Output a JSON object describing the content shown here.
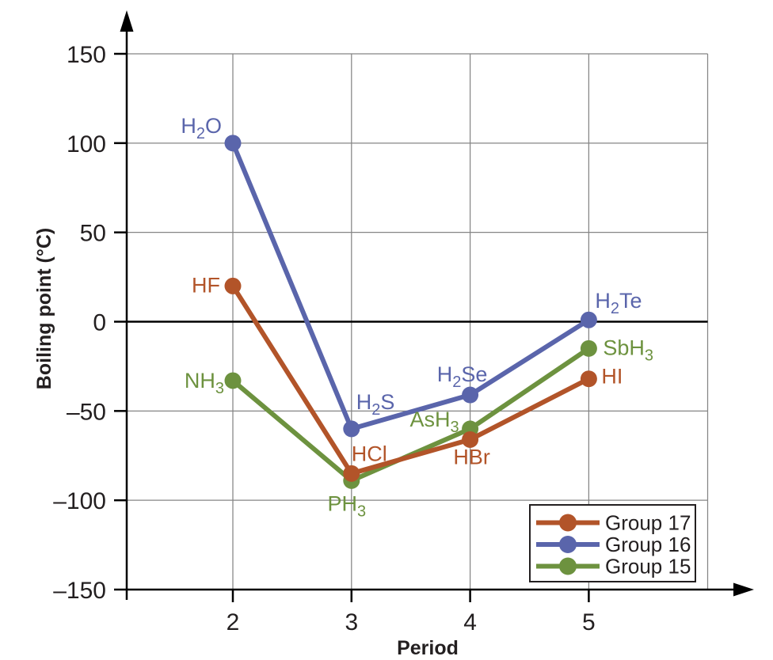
{
  "figure": {
    "background": "#ffffff",
    "text_color": "#231f20",
    "grid_color": "#858585",
    "axis_color": "#000000"
  },
  "chart_data": {
    "type": "line",
    "title": "",
    "xlabel": "Period",
    "ylabel": "Boiling point (°C)",
    "xlim": [
      1.1,
      6.4
    ],
    "ylim": [
      -150,
      150
    ],
    "x_ticks": [
      2,
      3,
      4,
      5
    ],
    "y_ticks": [
      150,
      100,
      50,
      0,
      -50,
      -100,
      -150
    ],
    "grid": true,
    "zero_line": true,
    "legend": {
      "position": "bottom-right"
    },
    "series": [
      {
        "name": "Group 17",
        "color": "#b25429",
        "points": [
          {
            "x": 2,
            "y": 20,
            "label": "HF",
            "label_anchor": "end",
            "label_dx": -16,
            "label_dy": 8
          },
          {
            "x": 3,
            "y": -85,
            "label": "HCl",
            "label_anchor": "start",
            "label_dx": 0,
            "label_dy": -16
          },
          {
            "x": 4,
            "y": -66,
            "label": "HBr",
            "label_anchor": "middle",
            "label_dx": 2,
            "label_dy": 31
          },
          {
            "x": 5,
            "y": -32,
            "label": "HI",
            "label_anchor": "start",
            "label_dx": 16,
            "label_dy": 6
          }
        ]
      },
      {
        "name": "Group 16",
        "color": "#5a65ab",
        "points": [
          {
            "x": 2,
            "y": 100,
            "label": "H2O",
            "label_anchor": "end",
            "label_dx": -14,
            "label_dy": -13
          },
          {
            "x": 3,
            "y": -60,
            "label": "H2S",
            "label_anchor": "start",
            "label_dx": 6,
            "label_dy": -25
          },
          {
            "x": 4,
            "y": -41,
            "label": "H2Se",
            "label_anchor": "middle",
            "label_dx": -10,
            "label_dy": -17
          },
          {
            "x": 5,
            "y": 1,
            "label": "H2Te",
            "label_anchor": "start",
            "label_dx": 8,
            "label_dy": -15
          }
        ]
      },
      {
        "name": "Group 15",
        "color": "#6d923f",
        "points": [
          {
            "x": 2,
            "y": -33,
            "label": "NH3",
            "label_anchor": "end",
            "label_dx": -11,
            "label_dy": 9
          },
          {
            "x": 3,
            "y": -89,
            "label": "PH3",
            "label_anchor": "middle",
            "label_dx": -6,
            "label_dy": 38
          },
          {
            "x": 4,
            "y": -60,
            "label": "AsH3",
            "label_anchor": "end",
            "label_dx": -14,
            "label_dy": -3
          },
          {
            "x": 5,
            "y": -15,
            "label": "SbH3",
            "label_anchor": "start",
            "label_dx": 18,
            "label_dy": 8
          }
        ]
      }
    ]
  }
}
